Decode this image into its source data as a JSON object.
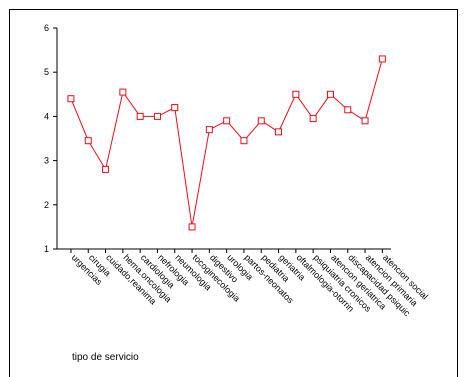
{
  "chart_data": {
    "type": "line",
    "x_label": "tipo de servicio",
    "categories": [
      "urgencias",
      "cirugia",
      "cuidado,reanima",
      "hema.oncologia",
      "cardiologia",
      "nefrologia",
      "neumologia",
      "tocoginecologia",
      "digestivo",
      "urologia",
      "partos-neonatos",
      "pediatria",
      "geriatria",
      "oftalmologia-otorrin",
      "psiquiatria cronicos",
      "atencion geriatrica",
      "discapacidad psiquic",
      "atencion primaria",
      "atencion social"
    ],
    "values": [
      4.4,
      3.45,
      2.8,
      4.55,
      4.0,
      4.0,
      4.2,
      1.5,
      3.7,
      3.9,
      3.45,
      3.9,
      3.65,
      4.5,
      3.95,
      4.5,
      4.15,
      3.9,
      5.3
    ],
    "color": "#e8101a",
    "ylim": [
      1,
      6
    ],
    "yticks": [
      1,
      2,
      3,
      4,
      5,
      6
    ],
    "grid": false
  }
}
